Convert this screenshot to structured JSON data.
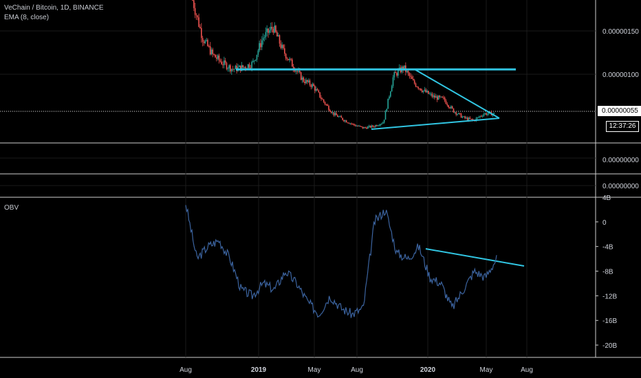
{
  "legend": {
    "title": "VeChain / Bitcoin, 1D, BINANCE",
    "ema": "EMA (8, close)",
    "obv": "OBV"
  },
  "price_tag": "0.00000055",
  "countdown": "12:37:26",
  "colors": {
    "background": "#000000",
    "up_candle": "#26a69a",
    "down_candle": "#ef5350",
    "trendline": "#31c6e3",
    "obv_line": "#3c64a0",
    "grid": "#1a1a1a",
    "axis_text": "#d1d4dc"
  },
  "chart_data": [
    {
      "type": "candlestick",
      "ylim": [
        3e-07,
        2e-06
      ],
      "yticks": [
        "0.00000150",
        "0.00000100",
        "0.00000055"
      ],
      "series": [
        {
          "values": [
            1.9e-06,
            1.45e-06,
            1.25e-06,
            1.15e-06,
            1.08e-06,
            1.1e-06,
            1.15e-06,
            1.45e-06,
            1.58e-06,
            1.3e-06,
            1.12e-06,
            9.5e-07,
            8.8e-07,
            7e-07,
            5.5e-07,
            4.8e-07,
            4.2e-07,
            3.8e-07,
            4e-07,
            4.5e-07,
            1e-06,
            1.1e-06,
            9.2e-07,
            8.2e-07,
            7.5e-07,
            7.2e-07,
            5.8e-07,
            5e-07,
            4.7e-07,
            5.5e-07,
            5.5e-07
          ]
        }
      ],
      "trendlines": [
        {
          "x": [
            "2018-11-12",
            "2020-06-25"
          ],
          "y": [
            1.06e-06,
            1.06e-06
          ]
        },
        {
          "x": [
            "2019-09-01",
            "2020-06-14"
          ],
          "y": [
            3.7e-07,
            5e-07
          ]
        },
        {
          "x": [
            "2019-12-05",
            "2020-06-14"
          ],
          "y": [
            1.06e-06,
            5e-07
          ]
        }
      ],
      "extra_axes": [
        "0.00000000",
        "0.00000000"
      ]
    },
    {
      "type": "line",
      "ylim": [
        -22,
        4
      ],
      "yticks": [
        "4B",
        "0",
        "-4B",
        "-8B",
        "-12B",
        "-16B",
        "-20B"
      ],
      "xticks": [
        "Aug",
        "2019",
        "May",
        "Aug",
        "2020",
        "May",
        "Aug"
      ],
      "series": [
        {
          "values": [
            3,
            -6,
            -4,
            -3,
            -6,
            -11,
            -12,
            -10,
            -11,
            -8,
            -10,
            -13,
            -15,
            -12,
            -14,
            -15,
            -14,
            0,
            2,
            -5,
            -6,
            -4,
            -9,
            -10,
            -14,
            -11,
            -8,
            -9,
            -6
          ]
        }
      ],
      "trendlines": [
        {
          "x": [
            "2019-12-05",
            "2020-07-20"
          ],
          "y": [
            -4.5,
            -7.5
          ]
        }
      ]
    }
  ]
}
